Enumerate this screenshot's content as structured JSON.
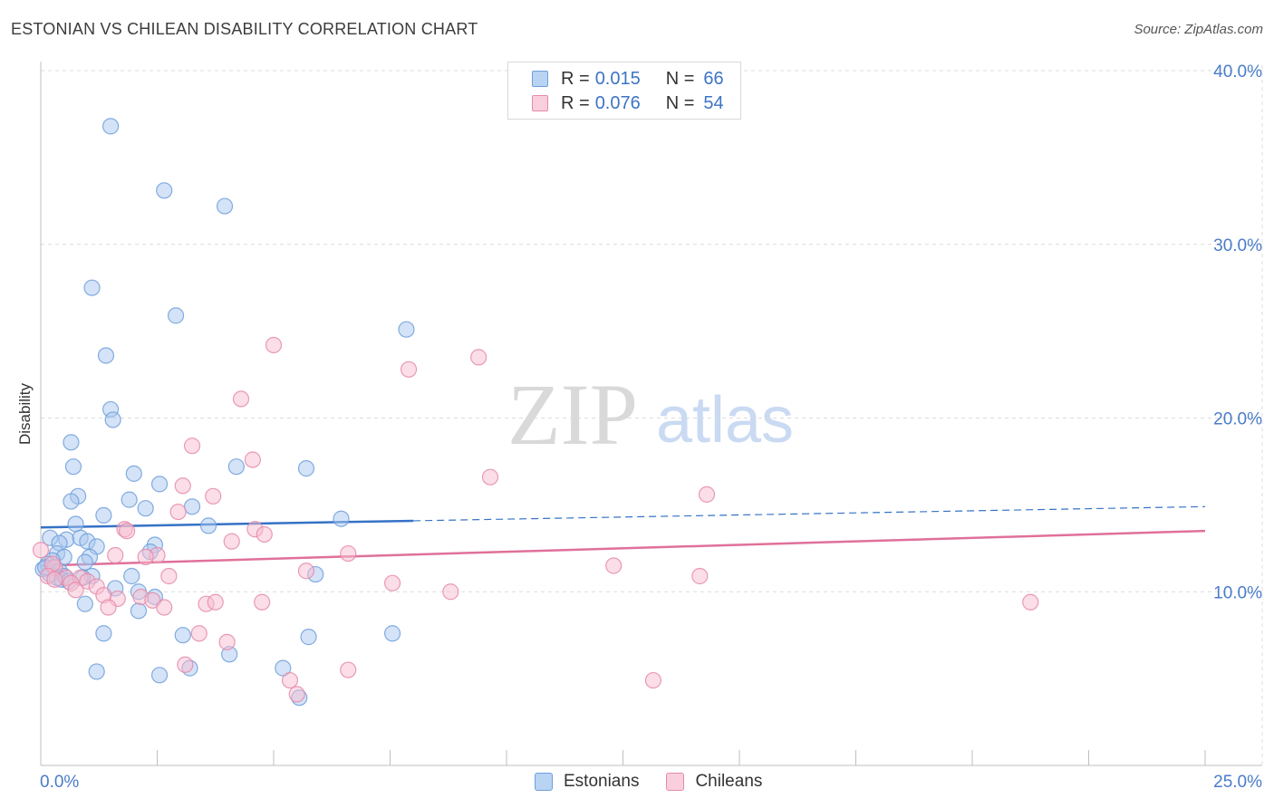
{
  "title": "ESTONIAN VS CHILEAN DISABILITY CORRELATION CHART",
  "source": "Source: ZipAtlas.com",
  "watermark": {
    "zip": "ZIP",
    "atlas": "atlas"
  },
  "legend": {
    "rows": [
      {
        "r_label": "R =",
        "r_value": "0.015",
        "n_label": "N =",
        "n_value": "66"
      },
      {
        "r_label": "R =",
        "r_value": "0.076",
        "n_label": "N =",
        "n_value": "54"
      }
    ]
  },
  "bottom_legend": [
    "Estonians",
    "Chileans"
  ],
  "colors": {
    "estonian_fill": "#a9c8f0",
    "estonian_stroke": "#6f9fdb",
    "estonian_line": "#3572c6",
    "chilean_fill": "#f7bdd0",
    "chilean_stroke": "#e58aaa",
    "chilean_line": "#e0709a",
    "tick_text": "#4a7cc9",
    "grid": "#dcdcdc"
  },
  "chart_data": {
    "type": "scatter",
    "title": "ESTONIAN VS CHILEAN DISABILITY CORRELATION CHART",
    "xlabel": "",
    "ylabel": "Disability",
    "xlim": [
      0,
      25
    ],
    "ylim": [
      0,
      40
    ],
    "x_tick_labels": [
      "0.0%",
      "25.0%"
    ],
    "y_ticks": [
      10,
      20,
      30,
      40
    ],
    "y_tick_labels": [
      "10.0%",
      "20.0%",
      "30.0%",
      "40.0%"
    ],
    "series": [
      {
        "name": "Estonians",
        "R": 0.015,
        "N": 66,
        "trend": {
          "x0": 0,
          "y0": 13.7,
          "x_solid_end": 8.0,
          "x1": 25,
          "y1": 14.9
        },
        "points": [
          [
            1.5,
            36.8
          ],
          [
            2.65,
            33.1
          ],
          [
            3.95,
            32.2
          ],
          [
            1.1,
            27.5
          ],
          [
            2.9,
            25.9
          ],
          [
            7.85,
            25.1
          ],
          [
            1.4,
            23.6
          ],
          [
            1.5,
            20.5
          ],
          [
            1.55,
            19.9
          ],
          [
            0.65,
            18.6
          ],
          [
            0.7,
            17.2
          ],
          [
            4.2,
            17.2
          ],
          [
            5.7,
            17.1
          ],
          [
            2.0,
            16.8
          ],
          [
            2.55,
            16.2
          ],
          [
            0.8,
            15.5
          ],
          [
            1.9,
            15.3
          ],
          [
            0.65,
            15.2
          ],
          [
            3.25,
            14.9
          ],
          [
            2.25,
            14.8
          ],
          [
            1.35,
            14.4
          ],
          [
            6.45,
            14.2
          ],
          [
            3.6,
            13.8
          ],
          [
            0.75,
            13.9
          ],
          [
            0.2,
            13.1
          ],
          [
            0.55,
            13.0
          ],
          [
            0.85,
            13.1
          ],
          [
            1.0,
            12.9
          ],
          [
            0.4,
            12.8
          ],
          [
            1.2,
            12.6
          ],
          [
            2.45,
            12.7
          ],
          [
            2.35,
            12.3
          ],
          [
            0.35,
            12.2
          ],
          [
            0.5,
            12.0
          ],
          [
            1.05,
            12.0
          ],
          [
            0.25,
            11.8
          ],
          [
            0.95,
            11.7
          ],
          [
            0.15,
            11.6
          ],
          [
            0.3,
            11.4
          ],
          [
            0.05,
            11.3
          ],
          [
            0.4,
            11.2
          ],
          [
            0.2,
            11.0
          ],
          [
            0.5,
            10.9
          ],
          [
            1.1,
            10.9
          ],
          [
            5.9,
            11.0
          ],
          [
            0.35,
            10.8
          ],
          [
            1.95,
            10.9
          ],
          [
            0.45,
            10.7
          ],
          [
            0.9,
            10.8
          ],
          [
            0.6,
            10.6
          ],
          [
            1.6,
            10.2
          ],
          [
            2.1,
            10.0
          ],
          [
            2.45,
            9.7
          ],
          [
            0.95,
            9.3
          ],
          [
            2.1,
            8.9
          ],
          [
            1.35,
            7.6
          ],
          [
            3.05,
            7.5
          ],
          [
            5.75,
            7.4
          ],
          [
            7.55,
            7.6
          ],
          [
            4.05,
            6.4
          ],
          [
            3.2,
            5.6
          ],
          [
            5.2,
            5.6
          ],
          [
            1.2,
            5.4
          ],
          [
            2.55,
            5.2
          ],
          [
            5.55,
            3.9
          ],
          [
            0.1,
            11.4
          ]
        ]
      },
      {
        "name": "Chileans",
        "R": 0.076,
        "N": 54,
        "trend": {
          "x0": 0,
          "y0": 11.5,
          "x1": 25,
          "y1": 13.5
        },
        "points": [
          [
            5.0,
            24.2
          ],
          [
            9.4,
            23.5
          ],
          [
            7.9,
            22.8
          ],
          [
            4.3,
            21.1
          ],
          [
            3.25,
            18.4
          ],
          [
            4.55,
            17.6
          ],
          [
            9.65,
            16.6
          ],
          [
            3.05,
            16.1
          ],
          [
            3.7,
            15.5
          ],
          [
            14.3,
            15.6
          ],
          [
            2.95,
            14.6
          ],
          [
            1.8,
            13.6
          ],
          [
            1.85,
            13.5
          ],
          [
            4.6,
            13.6
          ],
          [
            4.8,
            13.3
          ],
          [
            4.1,
            12.9
          ],
          [
            0.0,
            12.4
          ],
          [
            1.6,
            12.1
          ],
          [
            2.5,
            12.1
          ],
          [
            2.25,
            12.0
          ],
          [
            6.6,
            12.2
          ],
          [
            0.3,
            11.4
          ],
          [
            0.25,
            11.6
          ],
          [
            12.3,
            11.5
          ],
          [
            5.7,
            11.2
          ],
          [
            2.75,
            10.9
          ],
          [
            0.15,
            10.9
          ],
          [
            0.55,
            10.8
          ],
          [
            0.85,
            10.8
          ],
          [
            1.0,
            10.6
          ],
          [
            14.15,
            10.9
          ],
          [
            0.3,
            10.7
          ],
          [
            0.65,
            10.5
          ],
          [
            7.55,
            10.5
          ],
          [
            1.2,
            10.3
          ],
          [
            0.75,
            10.1
          ],
          [
            8.8,
            10.0
          ],
          [
            1.35,
            9.8
          ],
          [
            1.65,
            9.6
          ],
          [
            2.15,
            9.7
          ],
          [
            2.4,
            9.5
          ],
          [
            3.55,
            9.3
          ],
          [
            3.75,
            9.4
          ],
          [
            4.75,
            9.4
          ],
          [
            21.25,
            9.4
          ],
          [
            1.45,
            9.1
          ],
          [
            2.65,
            9.1
          ],
          [
            3.4,
            7.6
          ],
          [
            4.0,
            7.1
          ],
          [
            3.1,
            5.8
          ],
          [
            6.6,
            5.5
          ],
          [
            5.35,
            4.9
          ],
          [
            13.15,
            4.9
          ],
          [
            5.5,
            4.1
          ]
        ]
      }
    ]
  }
}
